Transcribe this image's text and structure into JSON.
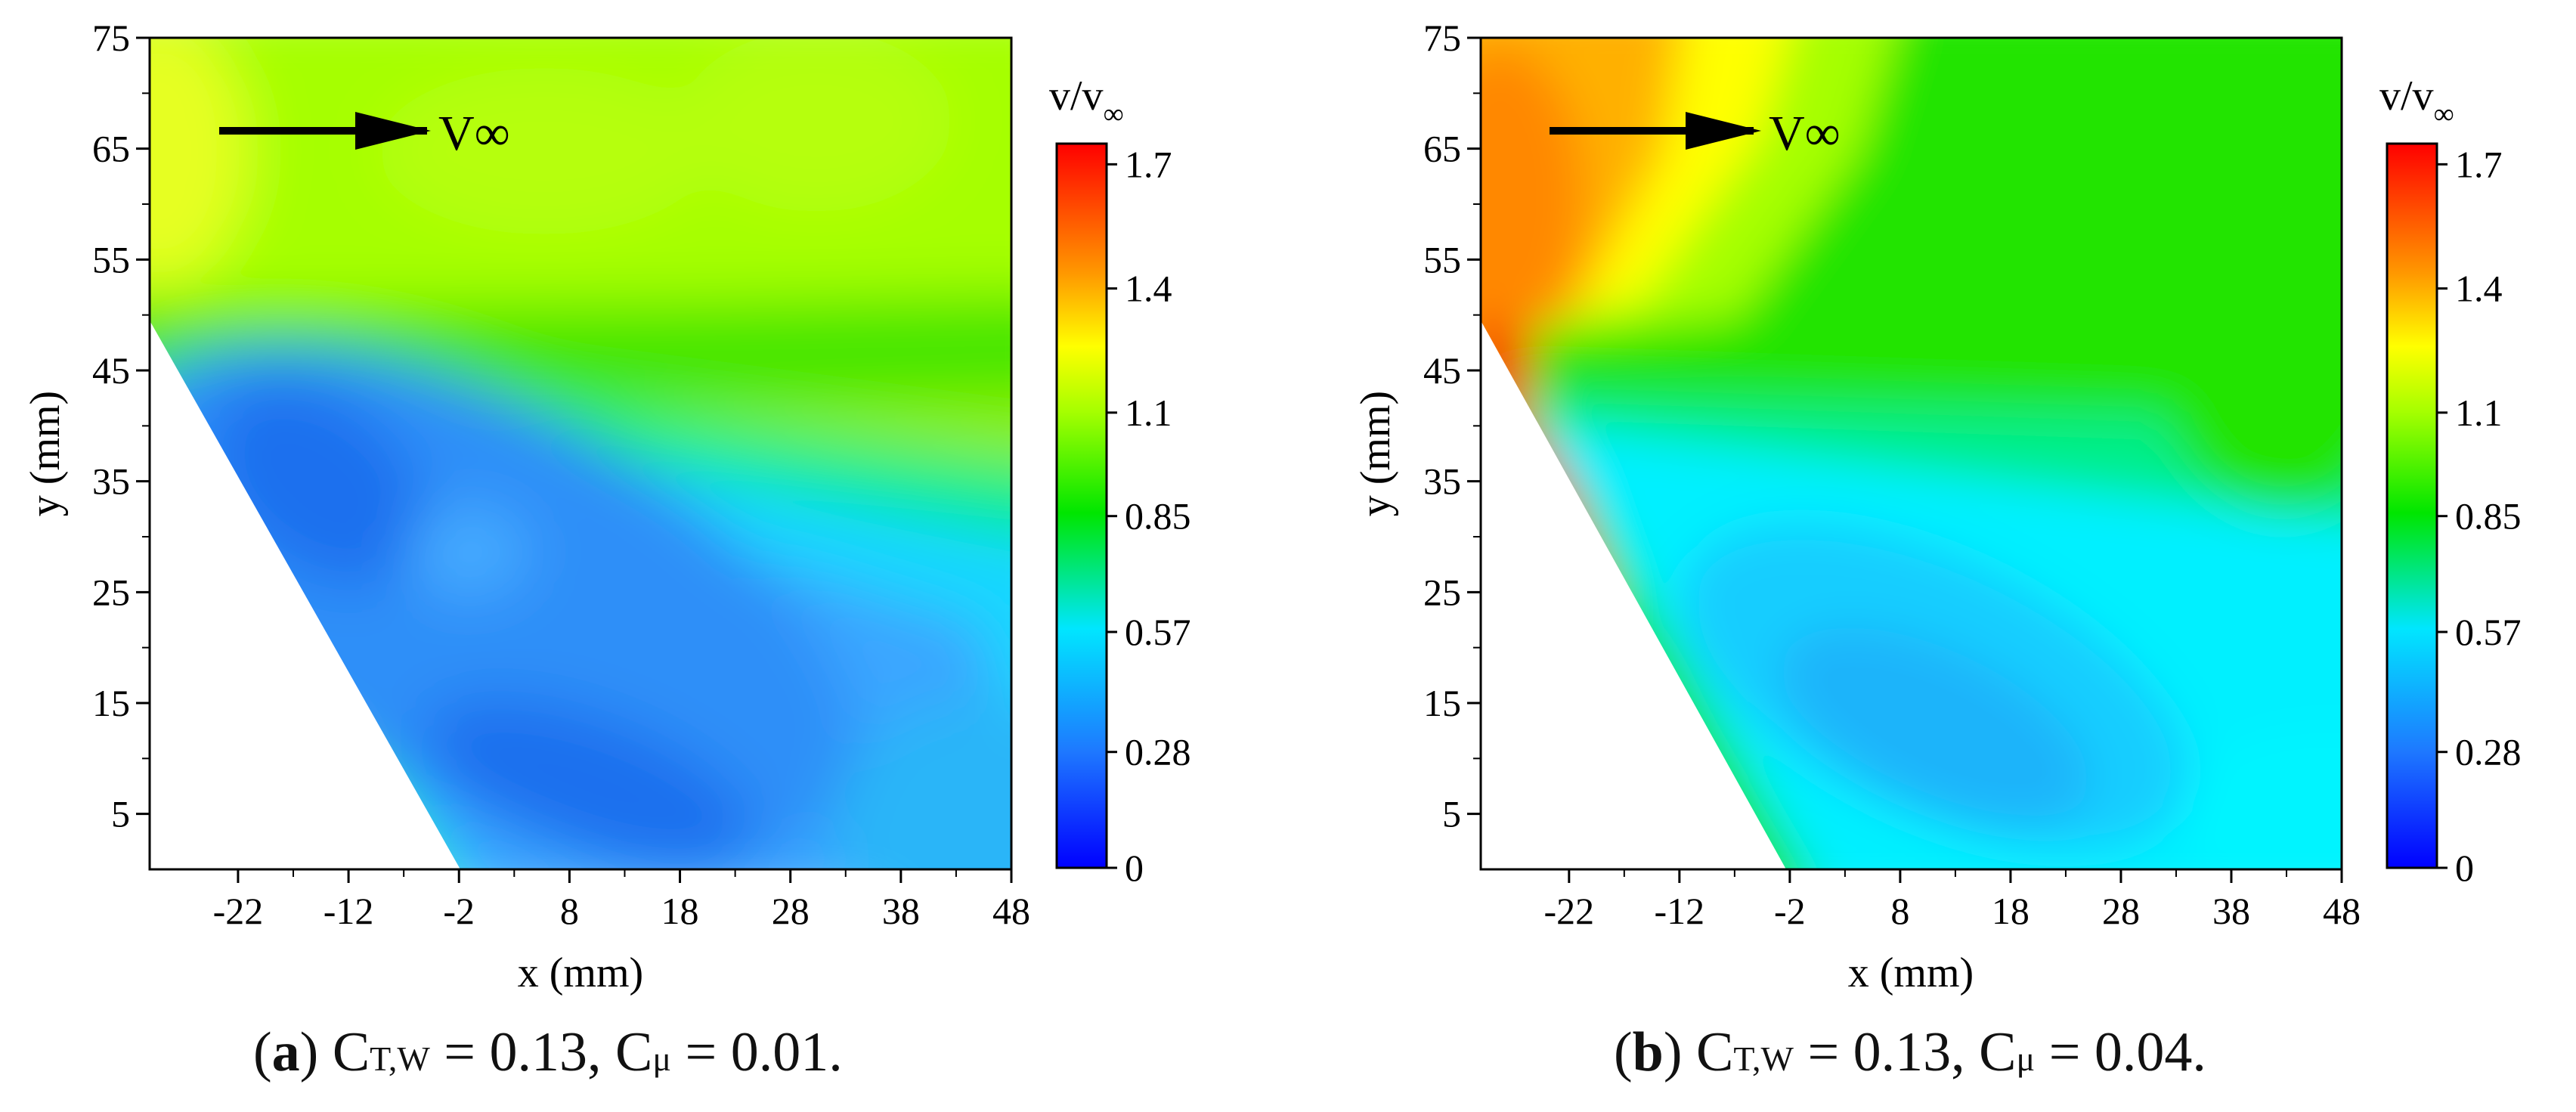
{
  "chart_data": [
    {
      "type": "heatmap",
      "panel_label": "a",
      "caption": {
        "ct_label": "C",
        "ct_sub": "T,W",
        "ct_value": "= 0.13,",
        "cmu_label": "C",
        "cmu_sub": "μ",
        "cmu_value": "= 0.01."
      },
      "xlabel": "x (mm)",
      "ylabel": "y (mm)",
      "xlim": [
        -30,
        48
      ],
      "ylim": [
        0,
        75
      ],
      "xticks": [
        "-22",
        "-12",
        "-2",
        "8",
        "18",
        "28",
        "38",
        "48"
      ],
      "yticks": [
        "5",
        "15",
        "25",
        "35",
        "45",
        "55",
        "65",
        "75"
      ],
      "annotation": "V∞",
      "colorbar": {
        "title": "v/v",
        "title_sub": "∞",
        "min": 0,
        "max": 1.75,
        "ticks": [
          "0",
          "0.28",
          "0.57",
          "0.85",
          "1.1",
          "1.4",
          "1.7"
        ]
      },
      "masked_region": {
        "description": "white region below the wing edge",
        "edge_from": [
          -30,
          48
        ],
        "edge_to": [
          0,
          0
        ]
      },
      "field_levels": [
        {
          "region": "freestream above 48 mm",
          "value": 1.15
        },
        {
          "region": "upper-left corner",
          "value": 1.3
        },
        {
          "region": "band 45-50 mm",
          "value": 0.95
        },
        {
          "region": "outer shear layer",
          "value": 0.85
        },
        {
          "region": "core near leading edge",
          "value": 0.25
        },
        {
          "region": "core near x=8,y=5",
          "value": 0.2
        },
        {
          "region": "right side x=48 low y",
          "value": 0.4
        }
      ]
    },
    {
      "type": "heatmap",
      "panel_label": "b",
      "caption": {
        "ct_label": "C",
        "ct_sub": "T,W",
        "ct_value": "= 0.13,",
        "cmu_label": "C",
        "cmu_sub": "μ",
        "cmu_value": "= 0.04."
      },
      "xlabel": "x (mm)",
      "ylabel": "y (mm)",
      "xlim": [
        -30,
        48
      ],
      "ylim": [
        0,
        75
      ],
      "xticks": [
        "-22",
        "-12",
        "-2",
        "8",
        "18",
        "28",
        "38",
        "48"
      ],
      "yticks": [
        "5",
        "15",
        "25",
        "35",
        "45",
        "55",
        "65",
        "75"
      ],
      "annotation": "V∞",
      "colorbar": {
        "title": "v/v",
        "title_sub": "∞",
        "min": 0,
        "max": 1.75,
        "ticks": [
          "0",
          "0.28",
          "0.57",
          "0.85",
          "1.1",
          "1.4",
          "1.7"
        ]
      },
      "masked_region": {
        "description": "white region below the wing edge",
        "edge_from": [
          -30,
          48
        ],
        "edge_to": [
          -2,
          0
        ]
      },
      "field_levels": [
        {
          "region": "freestream",
          "value": 0.95
        },
        {
          "region": "upper-left corner",
          "value": 1.45
        },
        {
          "region": "jet near leading edge",
          "value": 1.6
        },
        {
          "region": "core x=8..18,y=5..20",
          "value": 0.45
        },
        {
          "region": "right side low y",
          "value": 0.6
        }
      ]
    }
  ],
  "colors": {
    "0.0": "#0000ff",
    "0.28": "#1e78ff",
    "0.57": "#00e6ff",
    "0.85": "#00e600",
    "1.1": "#a6ff00",
    "1.25": "#ffff00",
    "1.4": "#ff9900",
    "1.75": "#ff0000"
  }
}
